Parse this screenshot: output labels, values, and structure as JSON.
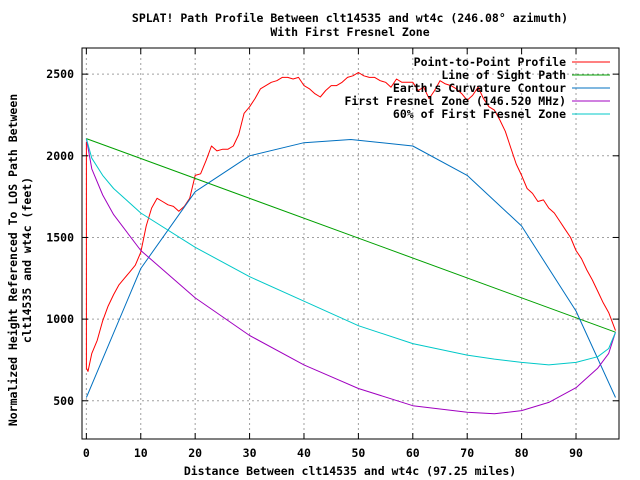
{
  "chart_data": {
    "type": "line",
    "title": "SPLAT! Path Profile Between clt14535 and wt4c (246.08° azimuth)",
    "subtitle": "With First Fresnel Zone",
    "xlabel": "Distance Between clt14535 and wt4c (97.25 miles)",
    "ylabel_line1": "Normalized Height Referenced To LOS Path Between",
    "ylabel_line2": "clt14535 and wt4c (feet)",
    "xlim": [
      -0.8,
      97.9
    ],
    "ylim": [
      266,
      2660
    ],
    "xticks": [
      0,
      10,
      20,
      30,
      40,
      50,
      60,
      70,
      80,
      90
    ],
    "yticks": [
      500,
      1000,
      1500,
      2000,
      2500
    ],
    "xtick_labels": [
      "0",
      "10",
      "20",
      "30",
      "40",
      "50",
      "60",
      "70",
      "80",
      "90"
    ],
    "ytick_labels": [
      "500",
      "1000",
      "1500",
      "2000",
      "2500"
    ],
    "grid": true,
    "legend_position": "top-right",
    "series": [
      {
        "name": "Point-to-Point Profile",
        "color": "#ff0000",
        "x": [
          0,
          0.01,
          0.3,
          1,
          2,
          3,
          4,
          5,
          6,
          7,
          8,
          9,
          10,
          11,
          12,
          13,
          14,
          15,
          16,
          17,
          18,
          19,
          20,
          21,
          22,
          23,
          24,
          25,
          26,
          27,
          28,
          29,
          30,
          31,
          32,
          33,
          34,
          35,
          36,
          37,
          38,
          39,
          40,
          41,
          42,
          43,
          44,
          45,
          46,
          47,
          48,
          49,
          50,
          51,
          52,
          53,
          54,
          55,
          56,
          57,
          58,
          59,
          60,
          61,
          62,
          63,
          64,
          65,
          66,
          67,
          68,
          69,
          70,
          71,
          72,
          73,
          74,
          75,
          76,
          77,
          78,
          79,
          80,
          81,
          82,
          83,
          84,
          85,
          86,
          87,
          88,
          89,
          90,
          91,
          92,
          93,
          94,
          95,
          96,
          97.25
        ],
        "values": [
          2085,
          700,
          680,
          790,
          870,
          990,
          1080,
          1150,
          1210,
          1250,
          1290,
          1330,
          1410,
          1570,
          1680,
          1740,
          1720,
          1700,
          1690,
          1660,
          1690,
          1740,
          1880,
          1890,
          1970,
          2060,
          2030,
          2040,
          2040,
          2060,
          2130,
          2260,
          2300,
          2350,
          2410,
          2430,
          2450,
          2460,
          2480,
          2480,
          2470,
          2480,
          2430,
          2410,
          2380,
          2360,
          2400,
          2430,
          2430,
          2450,
          2480,
          2490,
          2510,
          2490,
          2480,
          2480,
          2460,
          2450,
          2420,
          2470,
          2450,
          2450,
          2450,
          2400,
          2420,
          2350,
          2400,
          2460,
          2440,
          2430,
          2410,
          2380,
          2340,
          2370,
          2420,
          2350,
          2300,
          2280,
          2220,
          2150,
          2050,
          1950,
          1880,
          1800,
          1770,
          1720,
          1730,
          1680,
          1650,
          1600,
          1550,
          1500,
          1420,
          1370,
          1300,
          1240,
          1170,
          1100,
          1040,
          930
        ]
      },
      {
        "name": "Line of Sight Path",
        "color": "#00a000",
        "x": [
          0,
          97.25
        ],
        "values": [
          2105,
          920
        ]
      },
      {
        "name": "Earth's Curvature Contour",
        "color": "#0070c0",
        "x": [
          0,
          10,
          20,
          30,
          40,
          48.6,
          60,
          70,
          80,
          90,
          97.25
        ],
        "values": [
          520,
          1310,
          1780,
          2000,
          2080,
          2100,
          2060,
          1880,
          1570,
          1050,
          520
        ]
      },
      {
        "name": "First Fresnel Zone (146.520 MHz)",
        "color": "#a000c0",
        "x": [
          0,
          1,
          3,
          5,
          10,
          20,
          30,
          40,
          50,
          60,
          70,
          75,
          80,
          85,
          90,
          94,
          96,
          97.25
        ],
        "values": [
          2105,
          1920,
          1760,
          1640,
          1420,
          1130,
          900,
          720,
          575,
          470,
          430,
          420,
          440,
          490,
          580,
          700,
          790,
          920
        ]
      },
      {
        "name": "60% of First Fresnel Zone",
        "color": "#00c8c8",
        "x": [
          0,
          1,
          3,
          5,
          10,
          20,
          30,
          40,
          50,
          60,
          70,
          75,
          80,
          85,
          90,
          94,
          96,
          97.25
        ],
        "values": [
          2105,
          1985,
          1880,
          1800,
          1650,
          1440,
          1260,
          1110,
          960,
          850,
          780,
          755,
          735,
          720,
          735,
          770,
          820,
          920
        ]
      }
    ]
  }
}
